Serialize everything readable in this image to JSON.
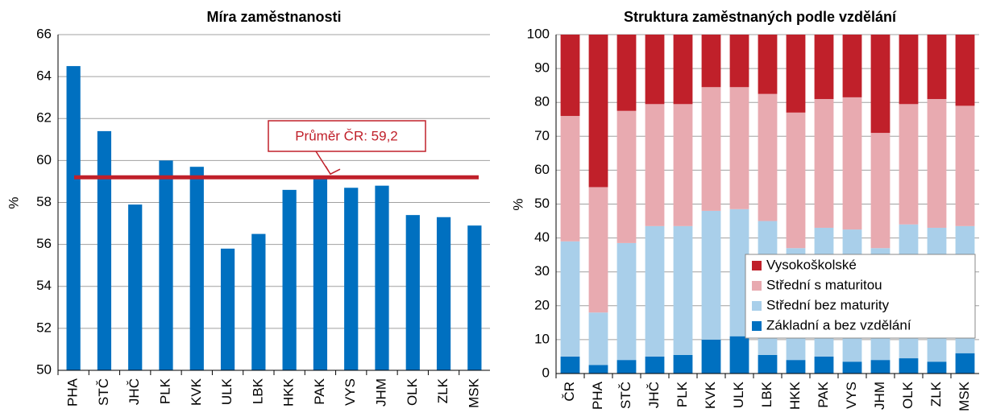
{
  "chart_data": [
    {
      "type": "bar",
      "title": "Míra zaměstnanosti",
      "ylabel": "%",
      "categories": [
        "PHA",
        "STČ",
        "JHČ",
        "PLK",
        "KVK",
        "ULK",
        "LBK",
        "HKK",
        "PAK",
        "VYS",
        "JHM",
        "OLK",
        "ZLK",
        "MSK"
      ],
      "values": [
        64.5,
        61.4,
        57.9,
        60.0,
        59.7,
        55.8,
        56.5,
        58.6,
        59.2,
        58.7,
        58.8,
        57.4,
        57.3,
        56.9
      ],
      "color": "#0070c0",
      "ylim": [
        50,
        66
      ],
      "yticks": [
        50,
        52,
        54,
        56,
        58,
        60,
        62,
        64,
        66
      ],
      "grid": true,
      "reference_line": {
        "value": 59.2,
        "label": "Průměr ČR: 59,2",
        "color": "#c0202a"
      }
    },
    {
      "type": "stacked_bar",
      "title": "Struktura zaměstnaných podle vzdělání",
      "ylabel": "%",
      "categories": [
        "ČR",
        "PHA",
        "STČ",
        "JHČ",
        "PLK",
        "KVK",
        "ULK",
        "LBK",
        "HKK",
        "PAK",
        "VYS",
        "JHM",
        "OLK",
        "ZLK",
        "MSK"
      ],
      "series": [
        {
          "name": "Základní a bez vzdělání",
          "color": "#0070c0",
          "values": [
            5,
            2.5,
            4,
            5,
            5.5,
            10,
            11,
            5.5,
            4,
            5,
            3.5,
            4,
            4.5,
            3.5,
            6
          ]
        },
        {
          "name": "Střední bez maturity",
          "color": "#a9cfea",
          "values": [
            34,
            15.5,
            34.5,
            38.5,
            38,
            38,
            37.5,
            39.5,
            33,
            38,
            39,
            33,
            39.5,
            39.5,
            37.5
          ]
        },
        {
          "name": "Střední s maturitou",
          "color": "#e8aab0",
          "values": [
            37,
            37,
            39,
            36,
            36,
            36.5,
            36,
            37.5,
            40,
            38,
            39,
            34,
            35.5,
            38,
            35.5
          ]
        },
        {
          "name": "Vysokoškolské",
          "color": "#c0202a",
          "values": [
            24,
            45,
            22.5,
            20.5,
            20.5,
            15.5,
            15.5,
            17.5,
            23,
            19,
            18.5,
            29,
            20.5,
            19,
            21
          ]
        }
      ],
      "ylim": [
        0,
        100
      ],
      "yticks": [
        0,
        10,
        20,
        30,
        40,
        50,
        60,
        70,
        80,
        90,
        100
      ],
      "grid": true,
      "legend": "lower right"
    }
  ]
}
